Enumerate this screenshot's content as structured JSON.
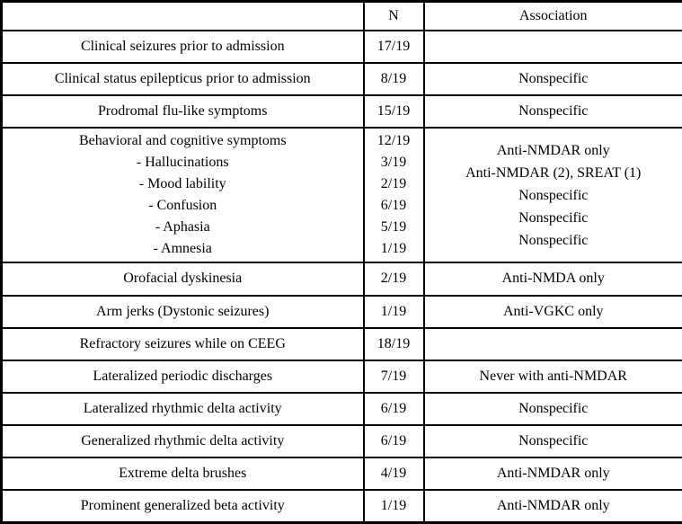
{
  "colors": {
    "border": "#000000",
    "text": "#000000",
    "background": "#ffffff"
  },
  "table": {
    "headers": {
      "feature": "",
      "n": "N",
      "association": "Association"
    },
    "rows": [
      {
        "feature": [
          "Clinical seizures prior to admission"
        ],
        "n": [
          "17/19"
        ],
        "association": []
      },
      {
        "feature": [
          "Clinical status epilepticus prior to admission"
        ],
        "n": [
          "8/19"
        ],
        "association": [
          "Nonspecific"
        ]
      },
      {
        "feature": [
          "Prodromal flu-like symptoms"
        ],
        "n": [
          "15/19"
        ],
        "association": [
          "Nonspecific"
        ]
      },
      {
        "feature": [
          "Behavioral and cognitive symptoms",
          "- Hallucinations",
          "- Mood lability",
          "- Confusion",
          "- Aphasia",
          "- Amnesia"
        ],
        "n": [
          "12/19",
          "3/19",
          "2/19",
          "6/19",
          "5/19",
          "1/19"
        ],
        "association": [
          "Anti-NMDAR only",
          "Anti-NMDAR (2), SREAT (1)",
          "Nonspecific",
          "Nonspecific",
          "Nonspecific"
        ]
      },
      {
        "feature": [
          "Orofacial dyskinesia"
        ],
        "n": [
          "2/19"
        ],
        "association": [
          "Anti-NMDA only"
        ]
      },
      {
        "feature": [
          "Arm jerks (Dystonic seizures)"
        ],
        "n": [
          "1/19"
        ],
        "association": [
          "Anti-VGKC only"
        ]
      },
      {
        "feature": [
          "Refractory seizures while on CEEG"
        ],
        "n": [
          "18/19"
        ],
        "association": []
      },
      {
        "feature": [
          "Lateralized periodic discharges"
        ],
        "n": [
          "7/19"
        ],
        "association": [
          "Never with anti-NMDAR"
        ]
      },
      {
        "feature": [
          "Lateralized rhythmic delta activity"
        ],
        "n": [
          "6/19"
        ],
        "association": [
          "Nonspecific"
        ]
      },
      {
        "feature": [
          "Generalized rhythmic delta activity"
        ],
        "n": [
          "6/19"
        ],
        "association": [
          "Nonspecific"
        ]
      },
      {
        "feature": [
          "Extreme delta brushes"
        ],
        "n": [
          "4/19"
        ],
        "association": [
          "Anti-NMDAR only"
        ]
      },
      {
        "feature": [
          "Prominent generalized beta activity"
        ],
        "n": [
          "1/19"
        ],
        "association": [
          "Anti-NMDAR only"
        ]
      }
    ]
  }
}
